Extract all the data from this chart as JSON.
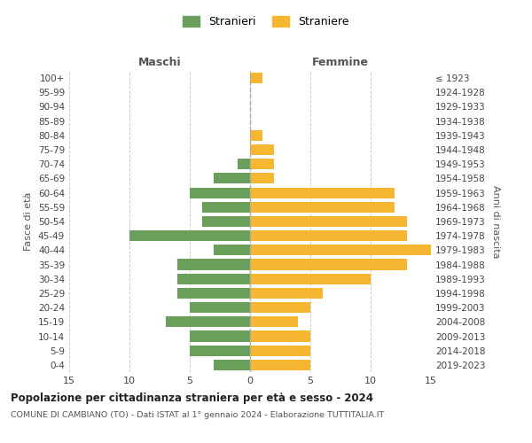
{
  "age_groups": [
    "0-4",
    "5-9",
    "10-14",
    "15-19",
    "20-24",
    "25-29",
    "30-34",
    "35-39",
    "40-44",
    "45-49",
    "50-54",
    "55-59",
    "60-64",
    "65-69",
    "70-74",
    "75-79",
    "80-84",
    "85-89",
    "90-94",
    "95-99",
    "100+"
  ],
  "birth_years": [
    "2019-2023",
    "2014-2018",
    "2009-2013",
    "2004-2008",
    "1999-2003",
    "1994-1998",
    "1989-1993",
    "1984-1988",
    "1979-1983",
    "1974-1978",
    "1969-1973",
    "1964-1968",
    "1959-1963",
    "1954-1958",
    "1949-1953",
    "1944-1948",
    "1939-1943",
    "1934-1938",
    "1929-1933",
    "1924-1928",
    "≤ 1923"
  ],
  "maschi": [
    3,
    5,
    5,
    7,
    5,
    6,
    6,
    6,
    3,
    10,
    4,
    4,
    5,
    3,
    1,
    0,
    0,
    0,
    0,
    0,
    0
  ],
  "femmine": [
    5,
    5,
    5,
    4,
    5,
    6,
    10,
    13,
    15,
    13,
    13,
    12,
    12,
    2,
    2,
    2,
    1,
    0,
    0,
    0,
    1
  ],
  "color_maschi": "#6a9e5b",
  "color_femmine": "#f5b731",
  "title": "Popolazione per cittadinanza straniera per età e sesso - 2024",
  "subtitle": "COMUNE DI CAMBIANO (TO) - Dati ISTAT al 1° gennaio 2024 - Elaborazione TUTTITALIA.IT",
  "legend_maschi": "Stranieri",
  "legend_femmine": "Straniere",
  "label_left": "Maschi",
  "label_right": "Femmine",
  "ylabel_left": "Fasce di età",
  "ylabel_right": "Anni di nascita",
  "xlim": 15,
  "background_color": "#ffffff"
}
